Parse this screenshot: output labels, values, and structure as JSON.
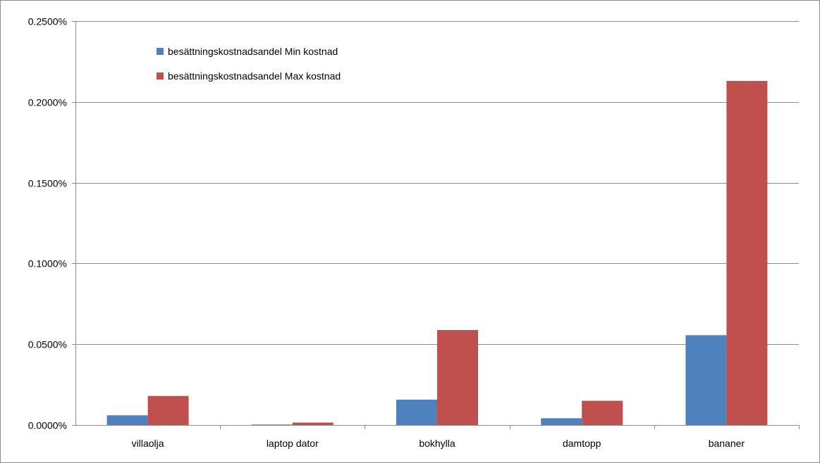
{
  "chart_data": {
    "type": "bar",
    "categories": [
      "villaolja",
      "laptop dator",
      "bokhylla",
      "damtopp",
      "bananer"
    ],
    "series": [
      {
        "name": "besättningskostnadsandel Min kostnad",
        "color": "#4f81bd",
        "values": [
          6e-05,
          3e-06,
          0.000157,
          4.2e-05,
          0.000556
        ]
      },
      {
        "name": "besättningskostnadsandel Max kostnad",
        "color": "#c0504d",
        "values": [
          0.00018,
          1.5e-05,
          0.000588,
          0.00015,
          0.00213
        ]
      }
    ],
    "y_tick_labels": [
      "0.0000%",
      "0.0500%",
      "0.1000%",
      "0.1500%",
      "0.2000%",
      "0.2500%"
    ],
    "y_ticks": [
      0,
      0.0005,
      0.001,
      0.0015,
      0.002,
      0.0025
    ],
    "ylim": [
      0,
      0.0025
    ],
    "grid": true,
    "legend_position": "top-left-inside",
    "title": "",
    "xlabel": "",
    "ylabel": ""
  }
}
